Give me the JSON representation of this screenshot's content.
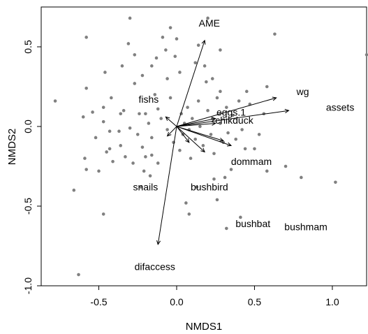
{
  "chart_data": {
    "type": "scatter",
    "xlabel": "NMDS1",
    "ylabel": "NMDS2",
    "xlim": [
      -0.87,
      1.22
    ],
    "ylim": [
      -1.0,
      0.75
    ],
    "xticks": [
      -0.5,
      0.0,
      0.5,
      1.0
    ],
    "xtick_labels": [
      "-0.5",
      "0.0",
      "0.5",
      "1.0"
    ],
    "yticks": [
      -1.0,
      -0.5,
      0.0,
      0.5
    ],
    "ytick_labels": [
      "-1.0",
      "-0.5",
      "0.0",
      "0.5"
    ],
    "grid": false,
    "point_color": "#808080",
    "points": [
      [
        -0.63,
        -0.93
      ],
      [
        -0.66,
        -0.4
      ],
      [
        -0.47,
        -0.55
      ],
      [
        -0.5,
        -0.28
      ],
      [
        -0.78,
        0.16
      ],
      [
        -0.58,
        0.56
      ],
      [
        -0.6,
        0.06
      ],
      [
        -0.58,
        0.24
      ],
      [
        -0.54,
        0.09
      ],
      [
        -0.52,
        -0.07
      ],
      [
        -0.47,
        0.03
      ],
      [
        -0.43,
        -0.03
      ],
      [
        -0.47,
        0.12
      ],
      [
        -0.42,
        0.18
      ],
      [
        -0.46,
        0.34
      ],
      [
        -0.41,
        -0.22
      ],
      [
        -0.43,
        -0.14
      ],
      [
        -0.58,
        -0.27
      ],
      [
        -0.59,
        -0.2
      ],
      [
        -0.37,
        -0.03
      ],
      [
        -0.36,
        0.08
      ],
      [
        -0.34,
        0.1
      ],
      [
        -0.36,
        -0.12
      ],
      [
        -0.33,
        -0.19
      ],
      [
        -0.3,
        -0.01
      ],
      [
        -0.35,
        0.38
      ],
      [
        -0.27,
        0.45
      ],
      [
        -0.31,
        0.52
      ],
      [
        -0.27,
        0.27
      ],
      [
        -0.24,
        0.08
      ],
      [
        -0.22,
        0.32
      ],
      [
        -0.2,
        0.08
      ],
      [
        -0.18,
        0.02
      ],
      [
        -0.25,
        -0.05
      ],
      [
        -0.22,
        -0.13
      ],
      [
        -0.28,
        -0.23
      ],
      [
        -0.23,
        -0.38
      ],
      [
        -0.16,
        -0.18
      ],
      [
        -0.17,
        -0.31
      ],
      [
        -0.14,
        0.2
      ],
      [
        -0.1,
        0.05
      ],
      [
        -0.12,
        0.11
      ],
      [
        -0.06,
        0.3
      ],
      [
        -0.07,
        0.48
      ],
      [
        -0.04,
        0.62
      ],
      [
        -0.09,
        0.56
      ],
      [
        -0.13,
        0.43
      ],
      [
        -0.16,
        0.38
      ],
      [
        -0.16,
        -0.07
      ],
      [
        -0.12,
        -0.23
      ],
      [
        -0.06,
        -0.02
      ],
      [
        -0.04,
        0.18
      ],
      [
        -0.01,
        0.44
      ],
      [
        -0.02,
        -0.1
      ],
      [
        0.02,
        -0.15
      ],
      [
        0.03,
        0.08
      ],
      [
        0.05,
        0.02
      ],
      [
        0.04,
        -0.05
      ],
      [
        0.07,
        0.12
      ],
      [
        0.08,
        -0.02
      ],
      [
        0.09,
        -0.2
      ],
      [
        0.1,
        0.05
      ],
      [
        0.12,
        -0.08
      ],
      [
        0.12,
        0.4
      ],
      [
        0.14,
        0.16
      ],
      [
        0.15,
        0.0
      ],
      [
        0.17,
        -0.12
      ],
      [
        0.18,
        0.38
      ],
      [
        0.19,
        0.28
      ],
      [
        0.2,
        0.1
      ],
      [
        0.22,
        -0.05
      ],
      [
        0.23,
        0.05
      ],
      [
        0.24,
        -0.17
      ],
      [
        0.26,
        0.18
      ],
      [
        0.28,
        0.02
      ],
      [
        0.28,
        0.48
      ],
      [
        0.3,
        -0.1
      ],
      [
        0.31,
        -0.32
      ],
      [
        0.32,
        0.12
      ],
      [
        0.33,
        -0.04
      ],
      [
        0.35,
        -0.27
      ],
      [
        0.36,
        0.07
      ],
      [
        0.38,
        -0.08
      ],
      [
        0.4,
        0.16
      ],
      [
        0.42,
        -0.02
      ],
      [
        0.44,
        -0.14
      ],
      [
        0.45,
        0.22
      ],
      [
        0.47,
        0.14
      ],
      [
        0.5,
        -0.14
      ],
      [
        0.53,
        -0.05
      ],
      [
        0.56,
        0.08
      ],
      [
        0.58,
        0.25
      ],
      [
        0.63,
        0.58
      ],
      [
        0.58,
        -0.28
      ],
      [
        0.7,
        -0.25
      ],
      [
        0.8,
        -0.32
      ],
      [
        1.02,
        -0.35
      ],
      [
        1.22,
        0.45
      ],
      [
        0.41,
        -0.57
      ],
      [
        0.32,
        -0.64
      ],
      [
        0.13,
        -0.38
      ],
      [
        0.06,
        -0.48
      ],
      [
        0.08,
        -0.55
      ],
      [
        -0.21,
        -0.28
      ],
      [
        0.24,
        -0.33
      ],
      [
        0.26,
        -0.46
      ],
      [
        0.2,
        0.68
      ],
      [
        0.23,
        0.3
      ],
      [
        0.02,
        0.34
      ],
      [
        0.0,
        0.55
      ],
      [
        -0.3,
        0.68
      ],
      [
        -0.45,
        -0.16
      ],
      [
        -0.2,
        -0.19
      ],
      [
        0.14,
        0.51
      ],
      [
        0.28,
        0.22
      ]
    ],
    "vectors": [
      {
        "label": "AME",
        "x": 0.18,
        "y": 0.54
      },
      {
        "label": "difaccess",
        "x": -0.12,
        "y": -0.74
      },
      {
        "label": "wg",
        "x": 0.64,
        "y": 0.18
      },
      {
        "label": "assets",
        "x": 0.72,
        "y": 0.1
      },
      {
        "label": "fishs",
        "x": -0.07,
        "y": 0.06
      },
      {
        "label": "eggs.1",
        "x": 0.25,
        "y": 0.05
      },
      {
        "label": "chikduck",
        "x": 0.25,
        "y": 0.02
      },
      {
        "label": "dommam",
        "x": 0.3,
        "y": -0.09
      },
      {
        "label": "snails",
        "x": -0.06,
        "y": -0.06
      },
      {
        "label": "bushbird",
        "x": 0.08,
        "y": -0.1
      },
      {
        "label": "bushbat",
        "x": 0.18,
        "y": -0.16
      },
      {
        "label": "bushmam",
        "x": 0.35,
        "y": -0.12
      }
    ],
    "labels": [
      {
        "text": "AME",
        "x": 0.21,
        "y": 0.65
      },
      {
        "text": "wg",
        "x": 0.81,
        "y": 0.22
      },
      {
        "text": "assets",
        "x": 1.05,
        "y": 0.12
      },
      {
        "text": "fishs",
        "x": -0.18,
        "y": 0.17
      },
      {
        "text": "eggs.1",
        "x": 0.35,
        "y": 0.09
      },
      {
        "text": "chikduck",
        "x": 0.37,
        "y": 0.04
      },
      {
        "text": "dommam",
        "x": 0.48,
        "y": -0.22
      },
      {
        "text": "snails",
        "x": -0.2,
        "y": -0.38
      },
      {
        "text": "bushbird",
        "x": 0.21,
        "y": -0.38
      },
      {
        "text": "bushbat",
        "x": 0.49,
        "y": -0.61
      },
      {
        "text": "bushmam",
        "x": 0.83,
        "y": -0.63
      },
      {
        "text": "difaccess",
        "x": -0.14,
        "y": -0.88
      }
    ]
  }
}
